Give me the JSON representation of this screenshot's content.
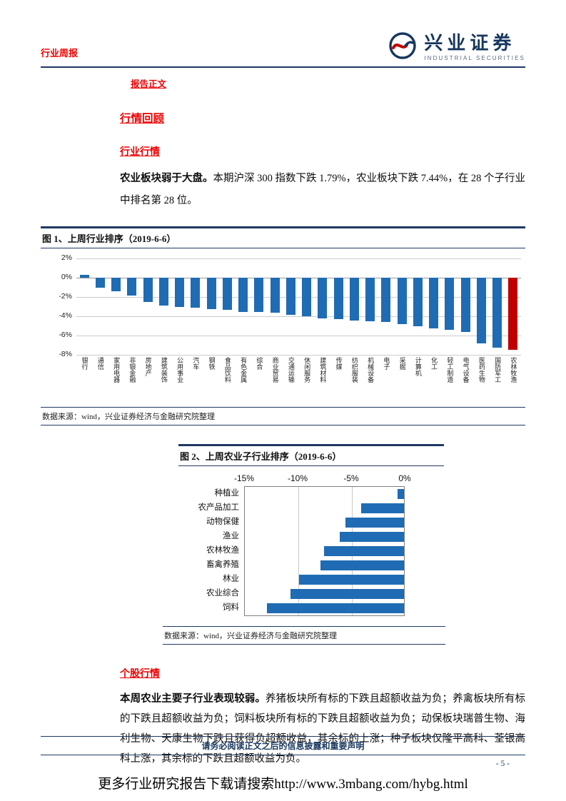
{
  "colors": {
    "accent_red": "#ee0000",
    "navy_line": "#1f3864",
    "bar_blue": "#1f6cb4",
    "bar_red": "#c00000"
  },
  "header": {
    "doc_type": "行业周报",
    "brand_name": "兴业证券",
    "brand_subtitle": "INDUSTRIAL SECURITIES"
  },
  "body": {
    "report_body_label": "报告正文",
    "review_heading": "行情回顾",
    "industry_heading": "行业行情",
    "industry_lead": "农业板块弱于大盘。",
    "industry_text": "本期沪深 300 指数下跌 1.79%，农业板块下跌 7.44%，在 28 个子行业中排名第 28 位。",
    "stock_heading": "个股行情",
    "stock_lead": "本周农业主要子行业表现较弱。",
    "stock_text": "养猪板块所有标的下跌且超额收益为负；养禽板块所有标的下跌且超额收益为负；饲料板块所有标的下跌且超额收益为负；动保板块瑞普生物、海利生物、天康生物下跌且获得负超额收益，其余标的上涨；种子板块仅隆平高科、荃银高科上涨，其余标的下跌且超额收益为负。"
  },
  "figure1": {
    "title": "图 1、上周行业排序（2019-6-6）",
    "source": "数据来源：wind，兴业证券经济与金融研究院整理"
  },
  "figure2": {
    "title": "图 2、上周农业子行业排序（2019-6-6）",
    "source": "数据来源：wind，兴业证券经济与金融研究院整理"
  },
  "footer": {
    "disclaimer": "请务必阅读正文之后的信息披露和重要声明",
    "page_number": "- 5 -",
    "download_note": "更多行业研究报告下载请搜索http://www.3mbang.com/hybg.html"
  },
  "chart_data": [
    {
      "type": "bar",
      "title": "图 1、上周行业排序（2019-6-6）",
      "categories": [
        "银行",
        "通信",
        "家用电器",
        "非银金融",
        "房地产",
        "建筑装饰",
        "公用事业",
        "汽车",
        "钢铁",
        "食品饮料",
        "有色金属",
        "综合",
        "商业贸易",
        "交通运输",
        "休闲服务",
        "建筑材料",
        "传媒",
        "纺织服装",
        "机械设备",
        "电子",
        "采掘",
        "计算机",
        "化工",
        "轻工制造",
        "电气设备",
        "医药生物",
        "国防军工",
        "农林牧渔"
      ],
      "values": [
        0.3,
        -1.0,
        -1.4,
        -1.8,
        -2.5,
        -2.9,
        -3.0,
        -3.1,
        -3.2,
        -3.3,
        -3.5,
        -3.5,
        -3.6,
        -3.8,
        -4.0,
        -4.2,
        -4.3,
        -4.4,
        -4.5,
        -4.6,
        -4.8,
        -5.0,
        -5.2,
        -5.4,
        -5.6,
        -6.8,
        -7.2,
        -7.44
      ],
      "ylim": [
        -8,
        2
      ],
      "yticks": [
        "2%",
        "0%",
        "-2%",
        "-4%",
        "-6%",
        "-8%"
      ],
      "xlabel": "",
      "ylabel": "",
      "grid": "horizontal",
      "legend": "none",
      "bar_color": "#1f6cb4",
      "highlight_index": 27,
      "highlight_color": "#c00000"
    },
    {
      "type": "bar",
      "orientation": "horizontal",
      "title": "图 2、上周农业子行业排序（2019-6-6）",
      "categories": [
        "种植业",
        "农产品加工",
        "动物保健",
        "渔业",
        "农林牧渔",
        "畜禽养殖",
        "林业",
        "农业综合",
        "饲料"
      ],
      "values": [
        -0.6,
        -4.0,
        -5.5,
        -6.0,
        -7.44,
        -7.8,
        -9.8,
        -10.6,
        -12.8
      ],
      "xlim": [
        -15,
        0
      ],
      "xticks": [
        "-15%",
        "-10%",
        "-5%",
        "0%"
      ],
      "xlabel": "",
      "ylabel": "",
      "grid": "vertical",
      "legend": "none",
      "bar_color": "#1f6cb4"
    }
  ]
}
